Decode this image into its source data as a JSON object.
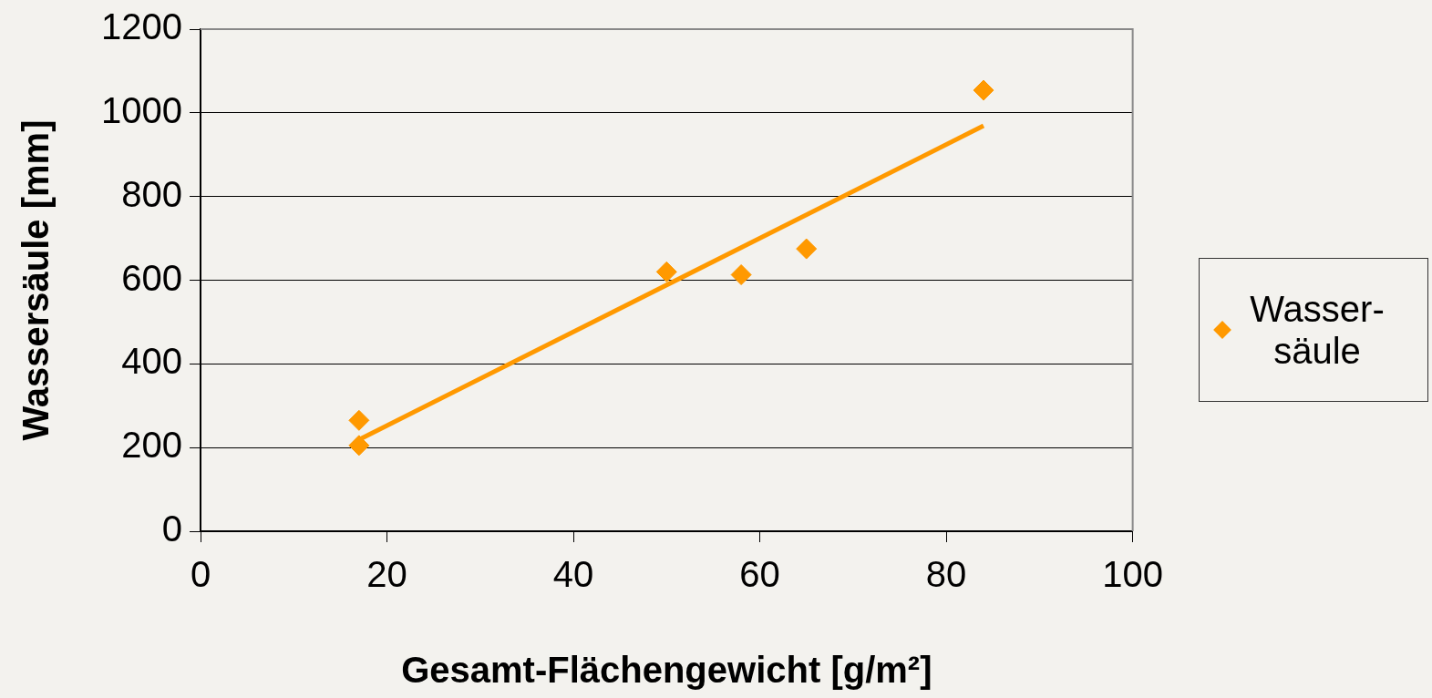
{
  "chart_data": {
    "type": "scatter",
    "xlabel": "Gesamt-Flächengewicht [g/m²]",
    "ylabel": "Wassersäule [mm]",
    "xlim": [
      0,
      100
    ],
    "xticks": [
      0,
      20,
      40,
      60,
      80,
      100
    ],
    "ylim": [
      0,
      1200
    ],
    "yticks": [
      0,
      200,
      400,
      600,
      800,
      1000,
      1200
    ],
    "grid": "y",
    "legend": "right",
    "marker": "diamond",
    "series": [
      {
        "name": "Wasser-säule",
        "color": "#ff9900",
        "x": [
          17,
          17,
          50,
          58,
          65,
          84
        ],
        "values": [
          265,
          205,
          620,
          613,
          675,
          1054
        ]
      },
      {
        "type": "line",
        "color": "#ff9900",
        "marker": "none",
        "line_style": "solid",
        "x": [
          17,
          84
        ],
        "values": [
          219,
          969
        ]
      }
    ]
  }
}
